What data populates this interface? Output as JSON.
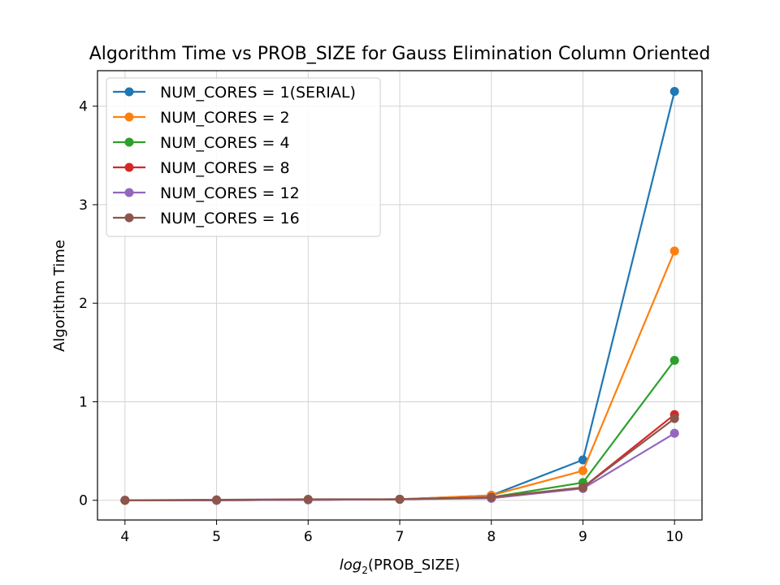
{
  "chart_data": {
    "type": "line",
    "title": "Algorithm Time vs PROB_SIZE for Gauss Elimination Column Oriented",
    "xlabel_base": "log",
    "xlabel_sub": "2",
    "xlabel_rest": "(PROB_SIZE)",
    "ylabel": "Algorithm Time",
    "x": [
      4,
      5,
      6,
      7,
      8,
      9,
      10
    ],
    "xlim": [
      3.7,
      10.3
    ],
    "ylim": [
      -0.2,
      4.36
    ],
    "xticks": [
      "4",
      "5",
      "6",
      "7",
      "8",
      "9",
      "10"
    ],
    "yticks": [
      "0",
      "1",
      "2",
      "3",
      "4"
    ],
    "grid": true,
    "legend_position": "upper-left",
    "series": [
      {
        "name": "NUM_CORES = 1(SERIAL)",
        "color": "#1f77b4",
        "values": [
          0.0,
          0.0,
          0.005,
          0.01,
          0.05,
          0.41,
          4.15
        ]
      },
      {
        "name": "NUM_CORES = 2",
        "color": "#ff7f0e",
        "values": [
          0.0,
          0.0,
          0.005,
          0.01,
          0.05,
          0.3,
          2.53
        ]
      },
      {
        "name": "NUM_CORES = 4",
        "color": "#2ca02c",
        "values": [
          0.0,
          0.0,
          0.005,
          0.01,
          0.03,
          0.18,
          1.42
        ]
      },
      {
        "name": "NUM_CORES = 8",
        "color": "#d62728",
        "values": [
          0.0,
          0.0,
          0.005,
          0.01,
          0.03,
          0.13,
          0.87
        ]
      },
      {
        "name": "NUM_CORES = 12",
        "color": "#9467bd",
        "values": [
          0.0,
          0.0,
          0.005,
          0.01,
          0.02,
          0.12,
          0.68
        ]
      },
      {
        "name": "NUM_CORES = 16",
        "color": "#8c564b",
        "values": [
          0.0,
          0.005,
          0.01,
          0.01,
          0.03,
          0.13,
          0.83
        ]
      }
    ]
  }
}
